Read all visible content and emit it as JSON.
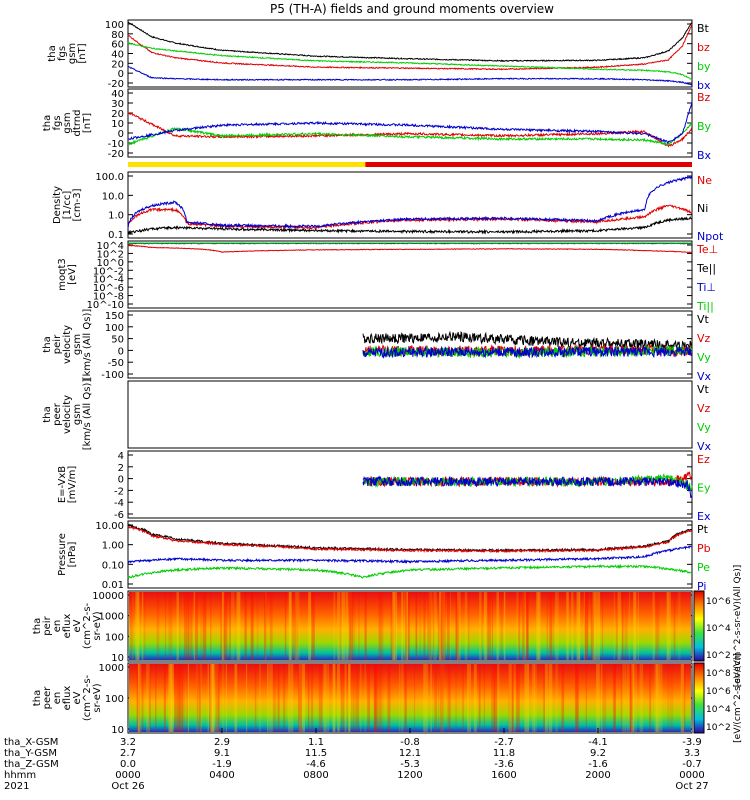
{
  "title": "P5 (TH-A) fields and ground moments overview",
  "chart_data": [
    {
      "type": "line",
      "ylabel": [
        "tha",
        "fgs",
        "gsm",
        "[nT]"
      ],
      "ytick_labels": [
        "100",
        "80",
        "60",
        "40",
        "20",
        "0",
        "-20"
      ],
      "ylim": [
        -20,
        100
      ],
      "series": [
        {
          "name": "Bt",
          "color": "#000000",
          "x": [
            0,
            1,
            2,
            4,
            8,
            12,
            16,
            20,
            22,
            23,
            23.6,
            24
          ],
          "values": [
            100,
            72,
            60,
            46,
            35,
            30,
            26,
            27,
            32,
            45,
            70,
            100
          ]
        },
        {
          "name": "bz",
          "color": "#e00000",
          "x": [
            0,
            1,
            2,
            4,
            8,
            12,
            16,
            20,
            22,
            23,
            23.6,
            24
          ],
          "values": [
            75,
            42,
            32,
            22,
            14,
            12,
            10,
            14,
            20,
            28,
            55,
            95
          ]
        },
        {
          "name": "by",
          "color": "#00cc00",
          "x": [
            0,
            1,
            2,
            4,
            8,
            12,
            16,
            20,
            22,
            23,
            23.6,
            24
          ],
          "values": [
            60,
            50,
            45,
            36,
            26,
            22,
            16,
            10,
            8,
            5,
            0,
            -10
          ]
        },
        {
          "name": "bx",
          "color": "#0000cc",
          "x": [
            0,
            1,
            2,
            4,
            8,
            12,
            16,
            20,
            22,
            23,
            23.6,
            24
          ],
          "values": [
            15,
            -6,
            -8,
            -10,
            -10,
            -10,
            -8,
            -8,
            -10,
            -12,
            -15,
            -20
          ]
        }
      ]
    },
    {
      "type": "line",
      "ylabel": [
        "tha",
        "fgs",
        "gsm",
        "dtrnd",
        "[nT]"
      ],
      "ytick_labels": [
        "40",
        "30",
        "20",
        "10",
        "0",
        "-10",
        "-20"
      ],
      "ylim": [
        -20,
        40
      ],
      "series": [
        {
          "name": "Bz",
          "color": "#e00000",
          "x": [
            0,
            2,
            4,
            8,
            12,
            16,
            20,
            22,
            23,
            23.6,
            24
          ],
          "values": [
            20,
            -2,
            -3,
            -2,
            0,
            -2,
            0,
            2,
            -12,
            -5,
            5
          ]
        },
        {
          "name": "By",
          "color": "#00cc00",
          "x": [
            0,
            2,
            4,
            8,
            12,
            16,
            20,
            22,
            23,
            23.6,
            24
          ],
          "values": [
            -10,
            5,
            -2,
            0,
            -3,
            -5,
            -5,
            -6,
            -10,
            0,
            10
          ]
        },
        {
          "name": "Bx",
          "color": "#0000cc",
          "x": [
            0,
            2,
            4,
            8,
            12,
            16,
            20,
            22,
            23,
            23.6,
            24
          ],
          "values": [
            -5,
            3,
            8,
            10,
            8,
            4,
            2,
            0,
            -8,
            0,
            30
          ]
        }
      ]
    },
    {
      "type": "line",
      "log": true,
      "ylabel": [
        "Density",
        "[1/cc]",
        "[cm-3]"
      ],
      "ytick_labels": [
        "100.0",
        "10.0",
        "1.0",
        "0.1"
      ],
      "ylim": [
        0.1,
        300
      ],
      "series": [
        {
          "name": "Ne",
          "color": "#e00000",
          "x": [
            0,
            1,
            2,
            2.5,
            4,
            8,
            12,
            16,
            20,
            22,
            23,
            24
          ],
          "values": [
            0.4,
            3,
            3,
            0.5,
            0.35,
            0.3,
            0.8,
            0.9,
            0.6,
            1.2,
            5,
            2
          ]
        },
        {
          "name": "Ni",
          "color": "#000000",
          "x": [
            0,
            1,
            2,
            4,
            8,
            12,
            16,
            20,
            22,
            23,
            24
          ],
          "values": [
            0.15,
            0.25,
            0.3,
            0.25,
            0.2,
            0.18,
            0.17,
            0.2,
            0.3,
            0.8,
            1
          ]
        },
        {
          "name": "Npot",
          "color": "#0000cc",
          "x": [
            0,
            1,
            2,
            2.5,
            4,
            8,
            12,
            16,
            20,
            22,
            23,
            24
          ],
          "values": [
            0.3,
            5,
            8,
            0.6,
            0.4,
            0.35,
            0.9,
            1,
            0.7,
            3,
            100,
            200
          ]
        }
      ]
    },
    {
      "type": "line",
      "log": true,
      "ylabel": [
        "moqt3",
        "[eV]"
      ],
      "ytick_labels": [
        "10^4",
        "10^2",
        "10^0",
        "10^-2",
        "10^-4",
        "10^-6",
        "10^-8",
        "10^-10"
      ],
      "ylim": [
        1e-10,
        10000.0
      ],
      "series": [
        {
          "name": "Te⊥",
          "color": "#e00000",
          "x": [
            0,
            1,
            2,
            4,
            8,
            12,
            16,
            20,
            22,
            24
          ],
          "values": [
            3000,
            1000,
            800,
            100,
            300,
            400,
            500,
            400,
            200,
            80
          ]
        },
        {
          "name": "Te||",
          "color": "#000000",
          "x": [
            0,
            24
          ],
          "values": [
            8000,
            8000
          ]
        },
        {
          "name": "Ti⊥",
          "color": "#0000cc",
          "x": [
            0,
            24
          ],
          "values": [
            9000,
            9000
          ]
        },
        {
          "name": "Ti||",
          "color": "#00cc00",
          "x": [
            0,
            24
          ],
          "values": [
            9500,
            9500
          ]
        }
      ]
    },
    {
      "type": "line",
      "ylabel": [
        "tha",
        "peir",
        "velocity",
        "gsm",
        "[km/s (All Qs)]"
      ],
      "ytick_labels": [
        "150",
        "100",
        "50",
        "0",
        "-50",
        "-100"
      ],
      "ylim": [
        -100,
        150
      ],
      "series": [
        {
          "name": "Vt",
          "color": "#000000",
          "x": [
            10,
            12,
            14,
            16,
            18,
            20,
            22,
            24
          ],
          "values": [
            50,
            50,
            55,
            45,
            35,
            30,
            25,
            20
          ]
        },
        {
          "name": "Vz",
          "color": "#e00000",
          "x": [
            10,
            12,
            16,
            20,
            24
          ],
          "values": [
            0,
            2,
            0,
            3,
            0
          ]
        },
        {
          "name": "Vy",
          "color": "#00cc00",
          "x": [
            10,
            12,
            16,
            20,
            24
          ],
          "values": [
            -5,
            -3,
            -8,
            -3,
            0
          ]
        },
        {
          "name": "Vx",
          "color": "#0000cc",
          "x": [
            10,
            12,
            16,
            20,
            24
          ],
          "values": [
            -10,
            -5,
            -5,
            -3,
            -5
          ]
        }
      ]
    },
    {
      "type": "line",
      "ylabel": [
        "tha",
        "peer",
        "velocity",
        "gsm",
        "[km/s (All Qs)]"
      ],
      "ytick_labels": [],
      "series": [
        {
          "name": "Vt",
          "color": "#000000",
          "x": [],
          "values": []
        },
        {
          "name": "Vz",
          "color": "#e00000",
          "x": [],
          "values": []
        },
        {
          "name": "Vy",
          "color": "#00cc00",
          "x": [],
          "values": []
        },
        {
          "name": "Vx",
          "color": "#0000cc",
          "x": [],
          "values": []
        }
      ]
    },
    {
      "type": "line",
      "ylabel": [
        "E=-VxB",
        "[mV/m]"
      ],
      "ytick_labels": [
        "4",
        "2",
        "0",
        "-2",
        "-4",
        "-6"
      ],
      "ylim": [
        -6,
        5
      ],
      "series": [
        {
          "name": "Ez",
          "color": "#e00000",
          "x": [
            10,
            12,
            16,
            20,
            23,
            24
          ],
          "values": [
            0,
            0,
            0,
            0,
            0,
            1
          ]
        },
        {
          "name": "Ey",
          "color": "#00cc00",
          "x": [
            10,
            12,
            16,
            20,
            23,
            24
          ],
          "values": [
            0,
            0,
            0,
            0,
            0.5,
            -1
          ]
        },
        {
          "name": "Ex",
          "color": "#0000cc",
          "x": [
            10,
            16,
            20,
            23,
            23.8,
            24
          ],
          "values": [
            0,
            0,
            0,
            0,
            -0.5,
            -3
          ]
        }
      ]
    },
    {
      "type": "line",
      "log": true,
      "ylabel": [
        "Pressure",
        "[nPa]"
      ],
      "ytick_labels": [
        "10.00",
        "1.00",
        "0.10",
        "0.01"
      ],
      "ylim": [
        0.003,
        25
      ],
      "series": [
        {
          "name": "Pt",
          "color": "#000000",
          "x": [
            0,
            1,
            2,
            4,
            8,
            12,
            16,
            20,
            22,
            23,
            24
          ],
          "values": [
            18,
            5,
            2.5,
            1.3,
            0.7,
            0.55,
            0.5,
            0.55,
            0.9,
            1.8,
            10
          ]
        },
        {
          "name": "Pb",
          "color": "#e00000",
          "x": [
            0,
            1,
            2,
            4,
            8,
            12,
            16,
            20,
            22,
            23,
            24
          ],
          "values": [
            15,
            4,
            2,
            1.2,
            0.6,
            0.5,
            0.45,
            0.5,
            0.8,
            1.6,
            9
          ]
        },
        {
          "name": "Pe",
          "color": "#00cc00",
          "x": [
            0,
            1,
            2,
            4,
            8,
            10,
            12,
            16,
            20,
            22,
            24
          ],
          "values": [
            0.01,
            0.02,
            0.03,
            0.04,
            0.03,
            0.01,
            0.03,
            0.04,
            0.05,
            0.05,
            0.02
          ]
        },
        {
          "name": "Pi",
          "color": "#0000cc",
          "x": [
            0,
            1,
            2,
            4,
            8,
            12,
            16,
            20,
            22,
            23,
            24
          ],
          "values": [
            0.1,
            0.12,
            0.15,
            0.12,
            0.12,
            0.1,
            0.12,
            0.15,
            0.2,
            0.5,
            0.8
          ]
        }
      ]
    },
    {
      "type": "heatmap",
      "ylabel": [
        "tha",
        "peir",
        "en",
        "eflux",
        "eV",
        "(cm^2-s-",
        "sr-eV)"
      ],
      "ytick_labels": [
        "10000",
        "1000",
        "100",
        "10"
      ],
      "colorbar_label": "[eV/(cm^2-s-sr-eV)(All Qs)]",
      "colorbar_ticks": [
        "10^6",
        "10^4",
        "10^2"
      ]
    },
    {
      "type": "heatmap",
      "ylabel": [
        "tha",
        "peer",
        "en",
        "eflux",
        "eV",
        "(cm^2-s-",
        "sr-eV)"
      ],
      "ytick_labels": [
        "1000",
        "100",
        "10"
      ],
      "colorbar_label": "[eV/(cm^2-s-sr-eV)]",
      "colorbar_ticks": [
        "10^8",
        "10^6",
        "10^4",
        "10^2"
      ]
    }
  ],
  "xaxis": {
    "rows": [
      {
        "label": "tha_X-GSM",
        "values": [
          "3.2",
          "2.9",
          "1.1",
          "-0.8",
          "-2.7",
          "-4.1",
          "-3.9"
        ]
      },
      {
        "label": "tha_Y-GSM",
        "values": [
          "2.7",
          "9.1",
          "11.5",
          "12.1",
          "11.8",
          "9.2",
          "3.3"
        ]
      },
      {
        "label": "tha_Z-GSM",
        "values": [
          "0.0",
          "-1.9",
          "-4.6",
          "-5.3",
          "-3.6",
          "-1.6",
          "-0.7"
        ]
      },
      {
        "label": "hhmm",
        "values": [
          "0000",
          "0400",
          "0800",
          "1200",
          "1600",
          "2000",
          "0000"
        ]
      },
      {
        "label": "2021",
        "values": [
          "Oct 26",
          "",
          "",
          "",
          "",
          "",
          "Oct 27"
        ]
      }
    ]
  }
}
